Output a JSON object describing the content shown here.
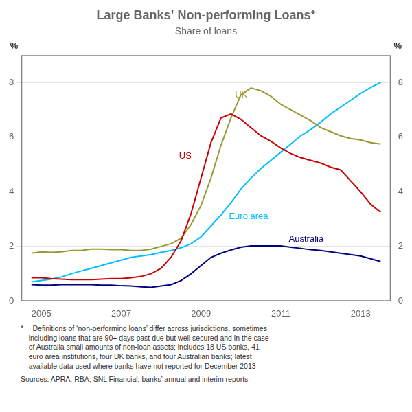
{
  "chart_data": {
    "type": "line",
    "title": "Large Banks’ Non-performing Loans*",
    "subtitle": "Share of loans",
    "ylabel": "%",
    "y2label": "%",
    "notes": [
      "*  Definitions of ‘non-performing loans’ differ across jurisdictions, sometimes\n    including loans that are 90+ days past due but well secured and in the case\n    of Australia small amounts of non-loan assets; includes 18 US banks, 41\n    euro area institutions, four UK banks, and four Australian banks; latest\n    available data used where banks have not reported for December 2013",
      "Sources: APRA; RBA; SNL Financial; banks’ annual and interim reports"
    ],
    "xlim": [
      2004.5,
      2013.75
    ],
    "xticks": [
      2005,
      2007,
      2009,
      2011,
      2013
    ],
    "ylim": [
      0,
      9
    ],
    "yticks": [
      0,
      2,
      4,
      6,
      8
    ],
    "y2lim": [
      0,
      9
    ],
    "y2ticks": [
      0,
      2,
      4,
      6,
      8
    ],
    "grid": "y",
    "x": [
      2004.75,
      2005.0,
      2005.25,
      2005.5,
      2005.75,
      2006.0,
      2006.25,
      2006.5,
      2006.75,
      2007.0,
      2007.25,
      2007.5,
      2007.75,
      2008.0,
      2008.25,
      2008.5,
      2008.75,
      2009.0,
      2009.25,
      2009.5,
      2009.75,
      2010.0,
      2010.25,
      2010.5,
      2010.75,
      2011.0,
      2011.25,
      2011.5,
      2011.75,
      2012.0,
      2012.25,
      2012.5,
      2012.75,
      2013.0,
      2013.25,
      2013.5
    ],
    "series": [
      {
        "name": "US",
        "color": "#cc0000",
        "label_x": 2008.45,
        "label_y": 5.3,
        "values": [
          0.85,
          0.85,
          0.82,
          0.8,
          0.78,
          0.78,
          0.78,
          0.8,
          0.82,
          0.82,
          0.85,
          0.9,
          1.0,
          1.2,
          1.6,
          2.2,
          3.2,
          4.5,
          5.8,
          6.7,
          6.85,
          6.65,
          6.35,
          6.05,
          5.85,
          5.6,
          5.4,
          5.25,
          5.15,
          5.05,
          4.9,
          4.8,
          4.4,
          4.0,
          3.55,
          3.25
        ]
      },
      {
        "name": "UK",
        "color": "#999933",
        "label_x": 2009.85,
        "label_y": 7.55,
        "values": [
          1.75,
          1.8,
          1.78,
          1.8,
          1.85,
          1.85,
          1.9,
          1.9,
          1.88,
          1.88,
          1.85,
          1.85,
          1.9,
          2.0,
          2.1,
          2.3,
          2.8,
          3.5,
          4.5,
          5.7,
          6.7,
          7.55,
          7.8,
          7.7,
          7.5,
          7.2,
          7.0,
          6.8,
          6.6,
          6.35,
          6.2,
          6.05,
          5.95,
          5.9,
          5.8,
          5.75
        ]
      },
      {
        "name": "Euro area",
        "color": "#00bfff",
        "label_x": 2009.7,
        "label_y": 3.1,
        "values": [
          0.7,
          0.75,
          0.8,
          0.88,
          1.0,
          1.1,
          1.2,
          1.3,
          1.4,
          1.5,
          1.6,
          1.65,
          1.7,
          1.78,
          1.85,
          1.95,
          2.1,
          2.35,
          2.75,
          3.15,
          3.6,
          4.1,
          4.5,
          4.85,
          5.15,
          5.45,
          5.75,
          6.05,
          6.28,
          6.55,
          6.85,
          7.1,
          7.35,
          7.6,
          7.82,
          8.0
        ]
      },
      {
        "name": "Australia",
        "color": "#000080",
        "label_x": 2011.2,
        "label_y": 2.25,
        "values": [
          0.6,
          0.58,
          0.58,
          0.6,
          0.6,
          0.6,
          0.6,
          0.58,
          0.58,
          0.56,
          0.55,
          0.52,
          0.5,
          0.55,
          0.6,
          0.75,
          1.0,
          1.3,
          1.6,
          1.75,
          1.87,
          1.97,
          2.02,
          2.02,
          2.02,
          2.02,
          1.97,
          1.93,
          1.88,
          1.85,
          1.8,
          1.75,
          1.7,
          1.65,
          1.55,
          1.45
        ]
      }
    ]
  }
}
